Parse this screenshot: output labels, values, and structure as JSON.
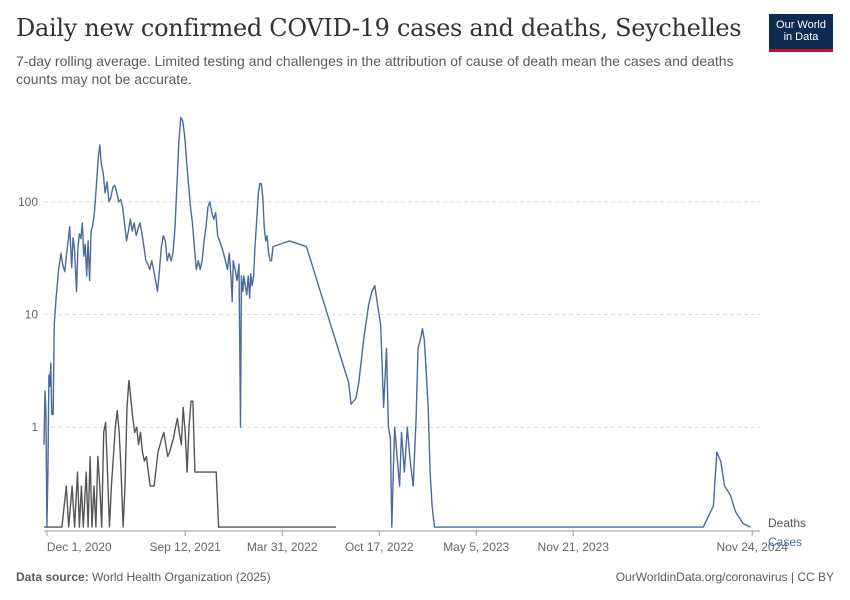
{
  "header": {
    "title": "Daily new confirmed COVID-19 cases and deaths, Seychelles",
    "subtitle": "7-day rolling average. Limited testing and challenges in the attribution of cause of death mean the cases and deaths counts may not be accurate.",
    "logo_line1": "Our World",
    "logo_line2": "in Data"
  },
  "footer": {
    "source_label": "Data source:",
    "source_value": "World Health Organization (2025)",
    "right": "OurWorldinData.org/coronavirus | CC BY"
  },
  "colors": {
    "cases": "#4c6a9c",
    "deaths": "#555555",
    "grid": "#dddddd",
    "axis": "#999999",
    "text": "#666666"
  },
  "chart_data": {
    "type": "line",
    "y_scale": "log",
    "ylim": [
      0.12,
      800
    ],
    "y_ticks": [
      {
        "value": 1,
        "label": "1"
      },
      {
        "value": 10,
        "label": "10"
      },
      {
        "value": 100,
        "label": "100"
      }
    ],
    "x_ticks": [
      "Dec 1, 2020",
      "Sep 12, 2021",
      "Mar 31, 2022",
      "Oct 17, 2022",
      "May 5, 2023",
      "Nov 21, 2023",
      "Nov 24, 2024"
    ],
    "xlim": [
      "2020-11-25",
      "2024-12-10"
    ],
    "grid": true,
    "series": [
      {
        "name": "Cases",
        "points": [
          [
            "2020-11-25",
            0.7
          ],
          [
            "2020-11-27",
            2.1
          ],
          [
            "2020-11-29",
            1.4
          ],
          [
            "2020-12-01",
            0.13
          ],
          [
            "2020-12-03",
            0.4
          ],
          [
            "2020-12-05",
            2.9
          ],
          [
            "2020-12-07",
            2.3
          ],
          [
            "2020-12-09",
            3.7
          ],
          [
            "2020-12-11",
            1.3
          ],
          [
            "2020-12-14",
            1.3
          ],
          [
            "2020-12-16",
            8
          ],
          [
            "2020-12-20",
            14
          ],
          [
            "2020-12-25",
            25
          ],
          [
            "2020-12-30",
            35
          ],
          [
            "2021-01-03",
            27
          ],
          [
            "2021-01-07",
            24
          ],
          [
            "2021-01-10",
            33
          ],
          [
            "2021-01-14",
            46
          ],
          [
            "2021-01-17",
            60
          ],
          [
            "2021-01-21",
            26
          ],
          [
            "2021-01-24",
            48
          ],
          [
            "2021-01-27",
            37
          ],
          [
            "2021-01-31",
            16
          ],
          [
            "2021-02-03",
            40
          ],
          [
            "2021-02-06",
            52
          ],
          [
            "2021-02-09",
            47
          ],
          [
            "2021-02-12",
            65
          ],
          [
            "2021-02-15",
            33
          ],
          [
            "2021-02-18",
            42
          ],
          [
            "2021-02-21",
            22
          ],
          [
            "2021-02-24",
            45
          ],
          [
            "2021-02-27",
            20
          ],
          [
            "2021-03-02",
            55
          ],
          [
            "2021-03-05",
            60
          ],
          [
            "2021-03-09",
            80
          ],
          [
            "2021-03-13",
            140
          ],
          [
            "2021-03-17",
            250
          ],
          [
            "2021-03-20",
            320
          ],
          [
            "2021-03-23",
            220
          ],
          [
            "2021-03-27",
            180
          ],
          [
            "2021-03-31",
            120
          ],
          [
            "2021-04-04",
            150
          ],
          [
            "2021-04-08",
            100
          ],
          [
            "2021-04-12",
            110
          ],
          [
            "2021-04-16",
            135
          ],
          [
            "2021-04-20",
            140
          ],
          [
            "2021-04-24",
            120
          ],
          [
            "2021-04-28",
            100
          ],
          [
            "2021-05-02",
            105
          ],
          [
            "2021-05-06",
            90
          ],
          [
            "2021-05-10",
            65
          ],
          [
            "2021-05-14",
            45
          ],
          [
            "2021-05-18",
            55
          ],
          [
            "2021-05-22",
            70
          ],
          [
            "2021-05-26",
            55
          ],
          [
            "2021-05-30",
            65
          ],
          [
            "2021-06-03",
            50
          ],
          [
            "2021-06-07",
            58
          ],
          [
            "2021-06-11",
            65
          ],
          [
            "2021-06-15",
            52
          ],
          [
            "2021-06-19",
            40
          ],
          [
            "2021-06-23",
            30
          ],
          [
            "2021-06-27",
            28
          ],
          [
            "2021-07-01",
            25
          ],
          [
            "2021-07-05",
            30
          ],
          [
            "2021-07-09",
            25
          ],
          [
            "2021-07-13",
            20
          ],
          [
            "2021-07-17",
            16
          ],
          [
            "2021-07-21",
            25
          ],
          [
            "2021-07-25",
            40
          ],
          [
            "2021-07-29",
            50
          ],
          [
            "2021-08-02",
            45
          ],
          [
            "2021-08-06",
            30
          ],
          [
            "2021-08-10",
            35
          ],
          [
            "2021-08-14",
            30
          ],
          [
            "2021-08-18",
            35
          ],
          [
            "2021-08-22",
            60
          ],
          [
            "2021-08-26",
            140
          ],
          [
            "2021-08-30",
            350
          ],
          [
            "2021-09-03",
            560
          ],
          [
            "2021-09-07",
            520
          ],
          [
            "2021-09-11",
            380
          ],
          [
            "2021-09-15",
            230
          ],
          [
            "2021-09-19",
            140
          ],
          [
            "2021-09-23",
            90
          ],
          [
            "2021-09-27",
            65
          ],
          [
            "2021-10-01",
            40
          ],
          [
            "2021-10-05",
            25
          ],
          [
            "2021-10-09",
            30
          ],
          [
            "2021-10-13",
            25
          ],
          [
            "2021-10-17",
            30
          ],
          [
            "2021-10-21",
            45
          ],
          [
            "2021-10-25",
            60
          ],
          [
            "2021-10-29",
            90
          ],
          [
            "2021-11-02",
            100
          ],
          [
            "2021-11-06",
            80
          ],
          [
            "2021-11-10",
            70
          ],
          [
            "2021-11-14",
            80
          ],
          [
            "2021-11-18",
            50
          ],
          [
            "2021-11-22",
            45
          ],
          [
            "2021-11-26",
            40
          ],
          [
            "2021-11-30",
            35
          ],
          [
            "2021-12-04",
            30
          ],
          [
            "2021-12-08",
            25
          ],
          [
            "2021-12-12",
            35
          ],
          [
            "2021-12-16",
            20
          ],
          [
            "2021-12-18",
            13
          ],
          [
            "2021-12-20",
            30
          ],
          [
            "2021-12-24",
            25
          ],
          [
            "2021-12-28",
            20
          ],
          [
            "2022-01-01",
            28
          ],
          [
            "2022-01-04",
            1.0
          ],
          [
            "2022-01-06",
            22
          ],
          [
            "2022-01-09",
            16
          ],
          [
            "2022-01-11",
            22
          ],
          [
            "2022-01-14",
            18
          ],
          [
            "2022-01-17",
            15
          ],
          [
            "2022-01-20",
            22
          ],
          [
            "2022-01-23",
            14
          ],
          [
            "2022-01-25",
            23
          ],
          [
            "2022-01-28",
            18
          ],
          [
            "2022-01-31",
            22
          ],
          [
            "2022-02-03",
            40
          ],
          [
            "2022-02-07",
            75
          ],
          [
            "2022-02-10",
            120
          ],
          [
            "2022-02-13",
            145
          ],
          [
            "2022-02-16",
            145
          ],
          [
            "2022-02-19",
            110
          ],
          [
            "2022-02-22",
            60
          ],
          [
            "2022-02-25",
            45
          ],
          [
            "2022-02-28",
            50
          ],
          [
            "2022-03-03",
            35
          ],
          [
            "2022-03-06",
            30
          ],
          [
            "2022-03-09",
            30
          ],
          [
            "2022-03-12",
            40
          ],
          [
            "2022-04-15",
            45
          ],
          [
            "2022-05-20",
            40
          ],
          [
            "2022-08-15",
            2.5
          ],
          [
            "2022-08-20",
            1.6
          ],
          [
            "2022-08-30",
            1.8
          ],
          [
            "2022-09-05",
            2.5
          ],
          [
            "2022-09-15",
            6
          ],
          [
            "2022-09-25",
            12
          ],
          [
            "2022-10-02",
            16
          ],
          [
            "2022-10-08",
            18
          ],
          [
            "2022-10-14",
            12
          ],
          [
            "2022-10-20",
            8
          ],
          [
            "2022-10-26",
            1.5
          ],
          [
            "2022-11-01",
            5
          ],
          [
            "2022-11-05",
            1.0
          ],
          [
            "2022-11-09",
            0.8
          ],
          [
            "2022-11-12",
            0.13
          ],
          [
            "2022-11-15",
            0.4
          ],
          [
            "2022-11-18",
            1.0
          ],
          [
            "2022-11-22",
            0.6
          ],
          [
            "2022-11-28",
            0.3
          ],
          [
            "2022-12-02",
            0.9
          ],
          [
            "2022-12-08",
            0.4
          ],
          [
            "2022-12-14",
            1.0
          ],
          [
            "2022-12-20",
            0.5
          ],
          [
            "2022-12-26",
            0.3
          ],
          [
            "2023-01-01",
            1.2
          ],
          [
            "2023-01-05",
            5
          ],
          [
            "2023-01-10",
            6
          ],
          [
            "2023-01-14",
            7.5
          ],
          [
            "2023-01-18",
            6
          ],
          [
            "2023-01-22",
            3
          ],
          [
            "2023-01-26",
            1.5
          ],
          [
            "2023-01-30",
            0.4
          ],
          [
            "2023-02-03",
            0.2
          ],
          [
            "2023-02-08",
            0.13
          ],
          [
            "2023-03-10",
            0.13
          ],
          [
            "2023-03-30",
            0.13
          ],
          [
            "2023-07-20",
            0.13
          ],
          [
            "2023-08-10",
            0.13
          ],
          [
            "2023-10-01",
            0.13
          ],
          [
            "2024-02-01",
            0.13
          ],
          [
            "2024-06-01",
            0.13
          ],
          [
            "2024-08-15",
            0.13
          ],
          [
            "2024-09-05",
            0.2
          ],
          [
            "2024-09-12",
            0.6
          ],
          [
            "2024-09-20",
            0.5
          ],
          [
            "2024-09-28",
            0.3
          ],
          [
            "2024-10-10",
            0.25
          ],
          [
            "2024-10-20",
            0.18
          ],
          [
            "2024-11-05",
            0.14
          ],
          [
            "2024-11-20",
            0.13
          ]
        ]
      },
      {
        "name": "Deaths",
        "points": [
          [
            "2020-11-25",
            0.13
          ],
          [
            "2021-01-01",
            0.13
          ],
          [
            "2021-01-10",
            0.3
          ],
          [
            "2021-01-15",
            0.13
          ],
          [
            "2021-01-22",
            0.3
          ],
          [
            "2021-01-27",
            0.13
          ],
          [
            "2021-02-02",
            0.4
          ],
          [
            "2021-02-06",
            0.13
          ],
          [
            "2021-02-10",
            0.3
          ],
          [
            "2021-02-14",
            0.13
          ],
          [
            "2021-02-20",
            0.4
          ],
          [
            "2021-02-24",
            0.13
          ],
          [
            "2021-02-28",
            0.55
          ],
          [
            "2021-03-04",
            0.13
          ],
          [
            "2021-03-08",
            0.3
          ],
          [
            "2021-03-12",
            0.13
          ],
          [
            "2021-03-16",
            0.55
          ],
          [
            "2021-03-20",
            0.3
          ],
          [
            "2021-03-24",
            0.13
          ],
          [
            "2021-03-28",
            0.9
          ],
          [
            "2021-04-01",
            1.1
          ],
          [
            "2021-04-05",
            0.4
          ],
          [
            "2021-04-09",
            0.13
          ],
          [
            "2021-04-13",
            0.3
          ],
          [
            "2021-04-17",
            0.55
          ],
          [
            "2021-04-21",
            1.0
          ],
          [
            "2021-04-25",
            1.4
          ],
          [
            "2021-04-29",
            0.9
          ],
          [
            "2021-05-03",
            0.4
          ],
          [
            "2021-05-07",
            0.13
          ],
          [
            "2021-05-11",
            0.3
          ],
          [
            "2021-05-15",
            1.5
          ],
          [
            "2021-05-19",
            2.6
          ],
          [
            "2021-05-23",
            1.8
          ],
          [
            "2021-05-27",
            1.2
          ],
          [
            "2021-05-31",
            0.9
          ],
          [
            "2021-06-04",
            1.0
          ],
          [
            "2021-06-08",
            0.7
          ],
          [
            "2021-06-12",
            0.9
          ],
          [
            "2021-06-16",
            0.6
          ],
          [
            "2021-06-20",
            0.5
          ],
          [
            "2021-06-24",
            0.55
          ],
          [
            "2021-06-28",
            0.4
          ],
          [
            "2021-07-02",
            0.3
          ],
          [
            "2021-07-06",
            0.3
          ],
          [
            "2021-07-10",
            0.3
          ],
          [
            "2021-07-18",
            0.6
          ],
          [
            "2021-07-26",
            0.8
          ],
          [
            "2021-07-30",
            0.9
          ],
          [
            "2021-08-03",
            0.7
          ],
          [
            "2021-08-07",
            0.55
          ],
          [
            "2021-08-11",
            0.6
          ],
          [
            "2021-08-15",
            0.7
          ],
          [
            "2021-08-19",
            0.8
          ],
          [
            "2021-08-23",
            1.0
          ],
          [
            "2021-08-27",
            1.2
          ],
          [
            "2021-08-31",
            0.9
          ],
          [
            "2021-09-04",
            0.7
          ],
          [
            "2021-09-08",
            1.5
          ],
          [
            "2021-09-12",
            0.9
          ],
          [
            "2021-09-16",
            0.4
          ],
          [
            "2021-09-20",
            1.0
          ],
          [
            "2021-09-24",
            1.7
          ],
          [
            "2021-09-28",
            1.7
          ],
          [
            "2021-10-02",
            0.4
          ],
          [
            "2021-11-15",
            0.4
          ],
          [
            "2021-11-20",
            0.13
          ],
          [
            "2022-05-20",
            0.13
          ],
          [
            "2022-07-20",
            0.13
          ]
        ]
      }
    ],
    "legend": [
      {
        "label": "Deaths",
        "series": "Deaths"
      },
      {
        "label": "Cases",
        "series": "Cases"
      }
    ]
  }
}
